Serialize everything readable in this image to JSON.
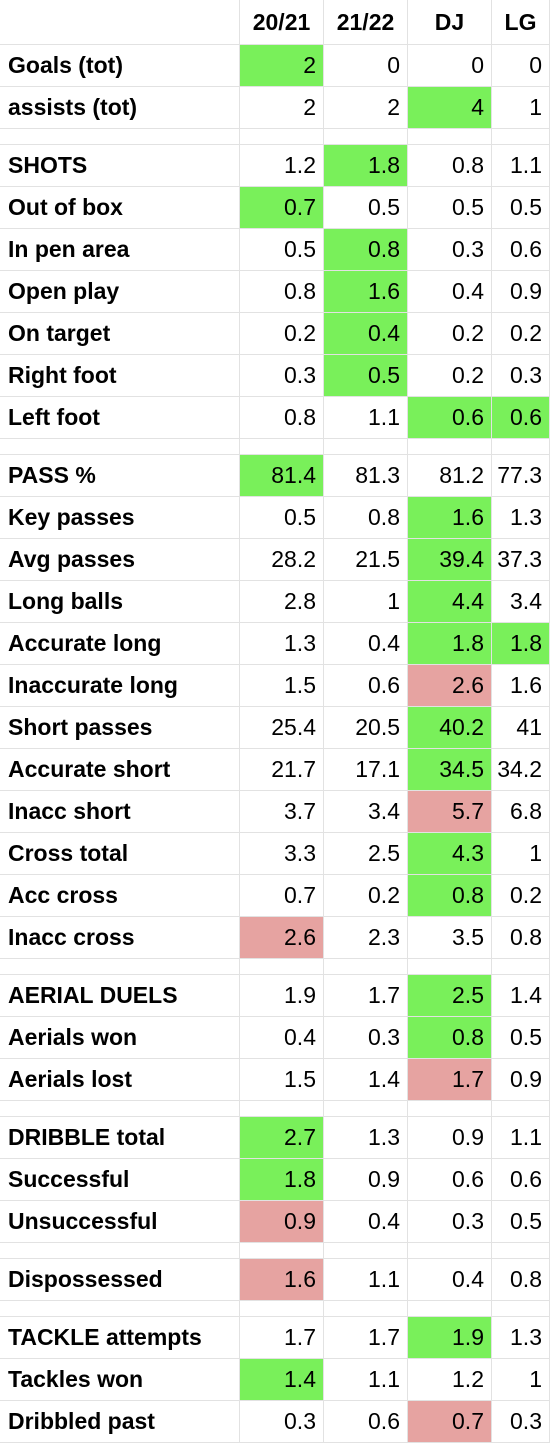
{
  "table": {
    "columns": [
      "20/21",
      "21/22",
      "DJ",
      "LG"
    ],
    "sections": [
      {
        "rows": [
          {
            "label": "Goals (tot)",
            "values": [
              2,
              0,
              0,
              0
            ],
            "fills": [
              "#79f05a",
              null,
              null,
              null
            ]
          },
          {
            "label": "assists (tot)",
            "values": [
              2,
              2,
              4,
              1
            ],
            "fills": [
              null,
              null,
              "#79f05a",
              null
            ]
          }
        ]
      },
      {
        "rows": [
          {
            "label": "SHOTS",
            "values": [
              1.2,
              1.8,
              0.8,
              1.1
            ],
            "fills": [
              null,
              "#79f05a",
              null,
              null
            ]
          },
          {
            "label": "Out of box",
            "values": [
              0.7,
              0.5,
              0.5,
              0.5
            ],
            "fills": [
              "#79f05a",
              null,
              null,
              null
            ]
          },
          {
            "label": "In pen area",
            "values": [
              0.5,
              0.8,
              0.3,
              0.6
            ],
            "fills": [
              null,
              "#79f05a",
              null,
              null
            ]
          },
          {
            "label": "Open play",
            "values": [
              0.8,
              1.6,
              0.4,
              0.9
            ],
            "fills": [
              null,
              "#79f05a",
              null,
              null
            ]
          },
          {
            "label": "On target",
            "values": [
              0.2,
              0.4,
              0.2,
              0.2
            ],
            "fills": [
              null,
              "#79f05a",
              null,
              null
            ]
          },
          {
            "label": "Right foot",
            "values": [
              0.3,
              0.5,
              0.2,
              0.3
            ],
            "fills": [
              null,
              "#79f05a",
              null,
              null
            ]
          },
          {
            "label": "Left foot",
            "values": [
              0.8,
              1.1,
              0.6,
              0.6
            ],
            "fills": [
              null,
              null,
              "#79f05a",
              "#79f05a"
            ]
          }
        ]
      },
      {
        "rows": [
          {
            "label": "PASS %",
            "values": [
              81.4,
              81.3,
              81.2,
              77.3
            ],
            "fills": [
              "#79f05a",
              null,
              null,
              null
            ]
          },
          {
            "label": "Key passes",
            "values": [
              0.5,
              0.8,
              1.6,
              1.3
            ],
            "fills": [
              null,
              null,
              "#79f05a",
              null
            ]
          },
          {
            "label": "Avg passes",
            "values": [
              28.2,
              21.5,
              39.4,
              37.3
            ],
            "fills": [
              null,
              null,
              "#79f05a",
              null
            ]
          },
          {
            "label": "Long balls",
            "values": [
              2.8,
              1,
              4.4,
              3.4
            ],
            "fills": [
              null,
              null,
              "#79f05a",
              null
            ]
          },
          {
            "label": "Accurate long",
            "values": [
              1.3,
              0.4,
              1.8,
              1.8
            ],
            "fills": [
              null,
              null,
              "#79f05a",
              "#79f05a"
            ]
          },
          {
            "label": "Inaccurate long",
            "values": [
              1.5,
              0.6,
              2.6,
              1.6
            ],
            "fills": [
              null,
              null,
              "#e6a3a1",
              null
            ]
          },
          {
            "label": "Short passes",
            "values": [
              25.4,
              20.5,
              40.2,
              41
            ],
            "fills": [
              null,
              null,
              "#79f05a",
              null
            ]
          },
          {
            "label": "Accurate short",
            "values": [
              21.7,
              17.1,
              34.5,
              34.2
            ],
            "fills": [
              null,
              null,
              "#79f05a",
              null
            ]
          },
          {
            "label": "Inacc short",
            "values": [
              3.7,
              3.4,
              5.7,
              6.8
            ],
            "fills": [
              null,
              null,
              "#e6a3a1",
              null
            ]
          },
          {
            "label": "Cross total",
            "values": [
              3.3,
              2.5,
              4.3,
              1
            ],
            "fills": [
              null,
              null,
              "#79f05a",
              null
            ]
          },
          {
            "label": "Acc cross",
            "values": [
              0.7,
              0.2,
              0.8,
              0.2
            ],
            "fills": [
              null,
              null,
              "#79f05a",
              null
            ]
          },
          {
            "label": "Inacc cross",
            "values": [
              2.6,
              2.3,
              3.5,
              0.8
            ],
            "fills": [
              "#e6a3a1",
              null,
              null,
              null
            ]
          }
        ]
      },
      {
        "rows": [
          {
            "label": "AERIAL DUELS",
            "values": [
              1.9,
              1.7,
              2.5,
              1.4
            ],
            "fills": [
              null,
              null,
              "#79f05a",
              null
            ]
          },
          {
            "label": "Aerials won",
            "values": [
              0.4,
              0.3,
              0.8,
              0.5
            ],
            "fills": [
              null,
              null,
              "#79f05a",
              null
            ]
          },
          {
            "label": "Aerials lost",
            "values": [
              1.5,
              1.4,
              1.7,
              0.9
            ],
            "fills": [
              null,
              null,
              "#e6a3a1",
              null
            ]
          }
        ]
      },
      {
        "rows": [
          {
            "label": "DRIBBLE total",
            "values": [
              2.7,
              1.3,
              0.9,
              1.1
            ],
            "fills": [
              "#79f05a",
              null,
              null,
              null
            ]
          },
          {
            "label": "Successful",
            "values": [
              1.8,
              0.9,
              0.6,
              0.6
            ],
            "fills": [
              "#79f05a",
              null,
              null,
              null
            ]
          },
          {
            "label": "Unsuccessful",
            "values": [
              0.9,
              0.4,
              0.3,
              0.5
            ],
            "fills": [
              "#e6a3a1",
              null,
              null,
              null
            ]
          }
        ]
      },
      {
        "rows": [
          {
            "label": "Dispossessed",
            "values": [
              1.6,
              1.1,
              0.4,
              0.8
            ],
            "fills": [
              "#e6a3a1",
              null,
              null,
              null
            ]
          }
        ]
      },
      {
        "rows": [
          {
            "label": "TACKLE attempts",
            "values": [
              1.7,
              1.7,
              1.9,
              1.3
            ],
            "fills": [
              null,
              null,
              "#79f05a",
              null
            ]
          },
          {
            "label": "Tackles won",
            "values": [
              1.4,
              1.1,
              1.2,
              1
            ],
            "fills": [
              "#79f05a",
              null,
              null,
              null
            ]
          },
          {
            "label": "Dribbled past",
            "values": [
              0.3,
              0.6,
              0.7,
              0.3
            ],
            "fills": [
              null,
              null,
              "#e6a3a1",
              null
            ]
          }
        ]
      }
    ]
  }
}
